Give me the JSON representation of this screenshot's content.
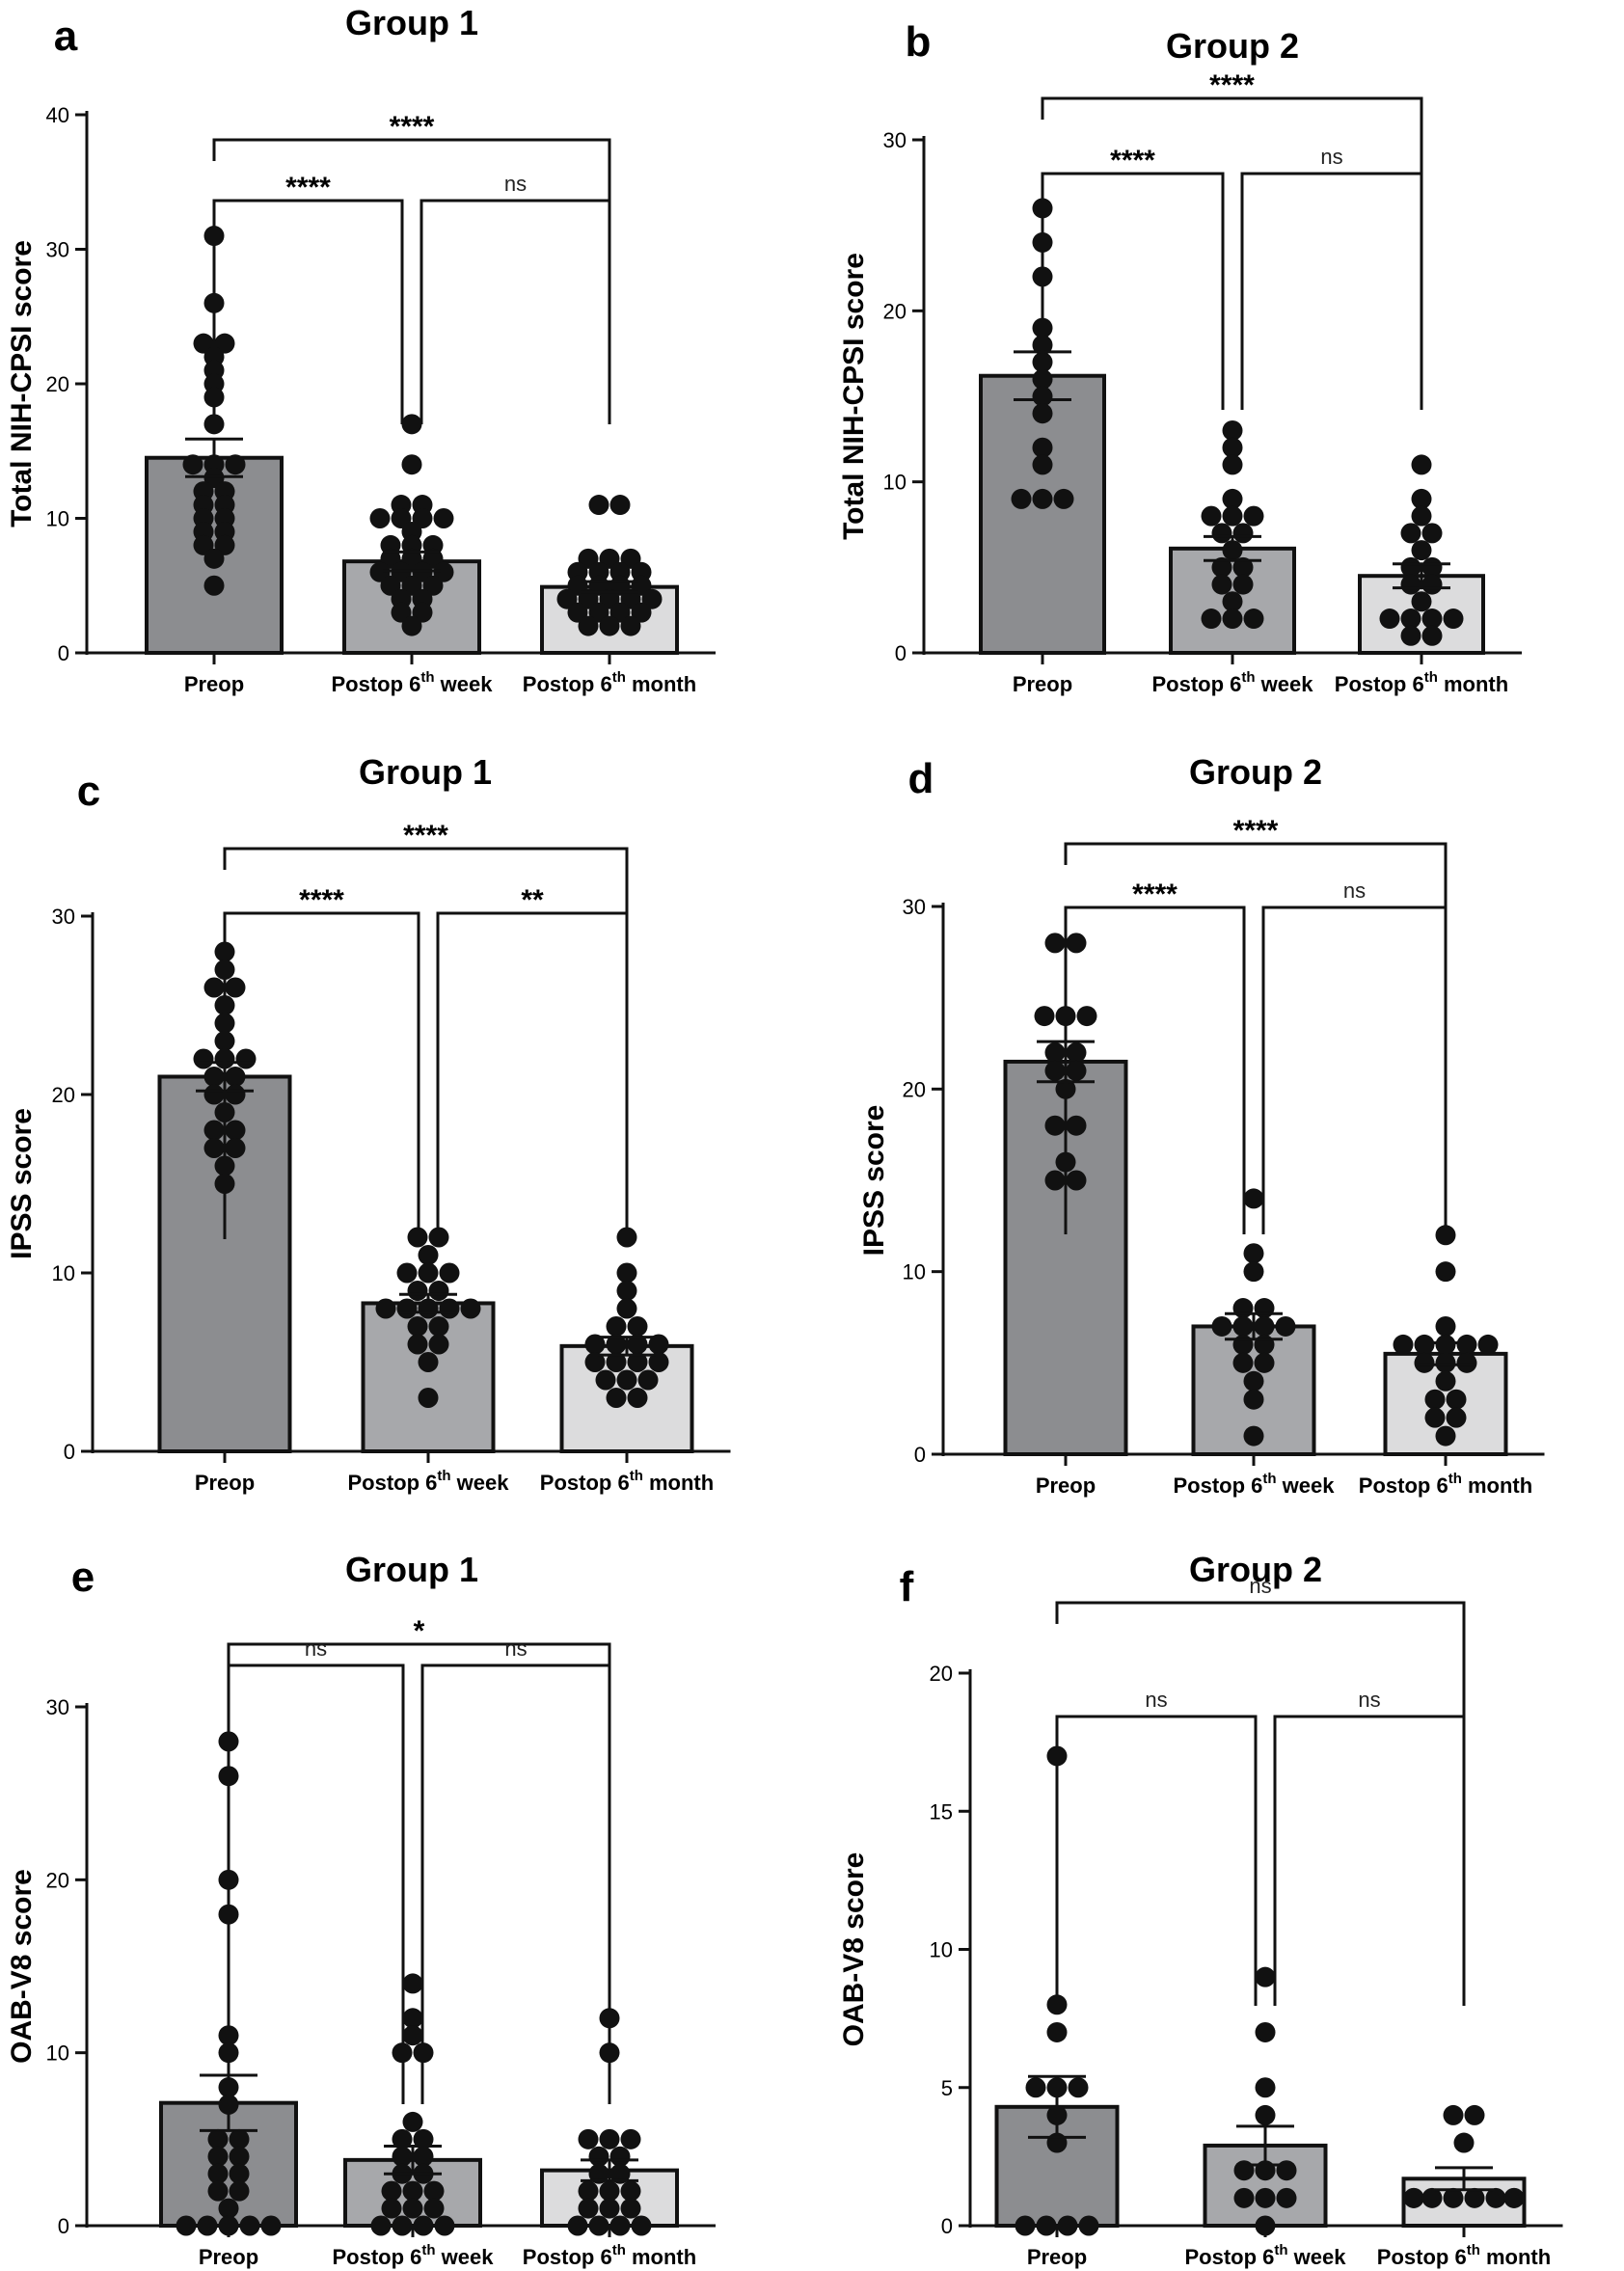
{
  "chart_data": [
    {
      "type": "bar",
      "panel": "a",
      "title": "Group 1",
      "ylabel": "Total NIH-CPSI score",
      "ylim": [
        0,
        40
      ],
      "yticks": [
        0,
        10,
        20,
        30,
        40
      ],
      "categories": [
        {
          "main": "Preop",
          "sup": "",
          "suffix": ""
        },
        {
          "main": "Postop 6",
          "sup": "th",
          "suffix": " week"
        },
        {
          "main": "Postop 6",
          "sup": "th",
          "suffix": " month"
        }
      ],
      "bar_colors": [
        "#8c8d90",
        "#a7a8ab",
        "#dcdcdd"
      ],
      "values": [
        14.5,
        6.8,
        4.9
      ],
      "sem": [
        1.4,
        0.7,
        0.4
      ],
      "points": [
        [
          31,
          26,
          23,
          23,
          22,
          21,
          20,
          19,
          17,
          14,
          14,
          14,
          13,
          12,
          12,
          11,
          11,
          10,
          10,
          9,
          9,
          8,
          8,
          7,
          5
        ],
        [
          17,
          14,
          11,
          11,
          10,
          10,
          10,
          10,
          9,
          8,
          8,
          8,
          7,
          7,
          7,
          6,
          6,
          6,
          6,
          5,
          5,
          5,
          4,
          4,
          3,
          3,
          2
        ],
        [
          11,
          11,
          7,
          7,
          7,
          6,
          6,
          6,
          6,
          5,
          5,
          5,
          5,
          4,
          4,
          4,
          4,
          4,
          3,
          3,
          3,
          3,
          2,
          2,
          2
        ]
      ],
      "comparisons": [
        {
          "from": 0,
          "to": 2,
          "label": "****"
        },
        {
          "from": 0,
          "to": 1,
          "label": "****"
        },
        {
          "from": 1,
          "to": 2,
          "label": "ns"
        }
      ]
    },
    {
      "type": "bar",
      "panel": "b",
      "title": "Group 2",
      "ylabel": "Total NIH-CPSI score",
      "ylim": [
        0,
        30
      ],
      "yticks": [
        0,
        10,
        20,
        30
      ],
      "categories": [
        {
          "main": "Preop",
          "sup": "",
          "suffix": ""
        },
        {
          "main": "Postop 6",
          "sup": "th",
          "suffix": " week"
        },
        {
          "main": "Postop 6",
          "sup": "th",
          "suffix": " month"
        }
      ],
      "bar_colors": [
        "#8c8d90",
        "#a7a8ab",
        "#dcdcdd"
      ],
      "values": [
        16.2,
        6.1,
        4.5
      ],
      "sem": [
        1.4,
        0.7,
        0.7
      ],
      "points": [
        [
          26,
          24,
          22,
          19,
          18,
          17,
          16,
          15,
          14,
          12,
          11,
          9,
          9,
          9
        ],
        [
          13,
          12,
          11,
          9,
          8,
          8,
          8,
          7,
          7,
          6,
          5,
          5,
          4,
          4,
          3,
          2,
          2,
          2
        ],
        [
          11,
          9,
          8,
          7,
          7,
          6,
          5,
          5,
          4,
          4,
          3,
          2,
          2,
          2,
          2,
          1,
          1
        ]
      ],
      "comparisons": [
        {
          "from": 0,
          "to": 2,
          "label": "****"
        },
        {
          "from": 0,
          "to": 1,
          "label": "****"
        },
        {
          "from": 1,
          "to": 2,
          "label": "ns"
        }
      ]
    },
    {
      "type": "bar",
      "panel": "c",
      "title": "Group 1",
      "ylabel": "IPSS score",
      "ylim": [
        0,
        30
      ],
      "yticks": [
        0,
        10,
        20,
        30
      ],
      "categories": [
        {
          "main": "Preop",
          "sup": "",
          "suffix": ""
        },
        {
          "main": "Postop 6",
          "sup": "th",
          "suffix": " week"
        },
        {
          "main": "Postop 6",
          "sup": "th",
          "suffix": " month"
        }
      ],
      "bar_colors": [
        "#8c8d90",
        "#a7a8ab",
        "#dcdcdd"
      ],
      "values": [
        21,
        8.3,
        5.9
      ],
      "sem": [
        0.8,
        0.5,
        0.5
      ],
      "points": [
        [
          28,
          27,
          26,
          26,
          25,
          24,
          23,
          22,
          22,
          22,
          21,
          21,
          20,
          20,
          19,
          18,
          18,
          17,
          17,
          16,
          15
        ],
        [
          12,
          12,
          11,
          10,
          10,
          10,
          9,
          9,
          8,
          8,
          8,
          8,
          8,
          7,
          7,
          6,
          6,
          5,
          3
        ],
        [
          12,
          10,
          9,
          8,
          7,
          7,
          6,
          6,
          6,
          6,
          5,
          5,
          5,
          5,
          4,
          4,
          4,
          3,
          3
        ]
      ],
      "comparisons": [
        {
          "from": 0,
          "to": 2,
          "label": "****"
        },
        {
          "from": 0,
          "to": 1,
          "label": "****"
        },
        {
          "from": 1,
          "to": 2,
          "label": "**"
        }
      ]
    },
    {
      "type": "bar",
      "panel": "d",
      "title": "Group 2",
      "ylabel": "IPSS score",
      "ylim": [
        0,
        30
      ],
      "yticks": [
        0,
        10,
        20,
        30
      ],
      "categories": [
        {
          "main": "Preop",
          "sup": "",
          "suffix": ""
        },
        {
          "main": "Postop 6",
          "sup": "th",
          "suffix": " week"
        },
        {
          "main": "Postop 6",
          "sup": "th",
          "suffix": " month"
        }
      ],
      "bar_colors": [
        "#8c8d90",
        "#a7a8ab",
        "#dcdcdd"
      ],
      "values": [
        21.5,
        7.0,
        5.5
      ],
      "sem": [
        1.1,
        0.7,
        0.6
      ],
      "points": [
        [
          28,
          28,
          24,
          24,
          24,
          22,
          22,
          21,
          21,
          20,
          18,
          18,
          16,
          15,
          15
        ],
        [
          14,
          11,
          10,
          8,
          8,
          7,
          7,
          7,
          7,
          6,
          6,
          5,
          5,
          4,
          3,
          1
        ],
        [
          12,
          10,
          7,
          6,
          6,
          6,
          6,
          6,
          5,
          5,
          5,
          4,
          3,
          3,
          2,
          2,
          1
        ]
      ],
      "comparisons": [
        {
          "from": 0,
          "to": 2,
          "label": "****"
        },
        {
          "from": 0,
          "to": 1,
          "label": "****"
        },
        {
          "from": 1,
          "to": 2,
          "label": "ns"
        }
      ]
    },
    {
      "type": "bar",
      "panel": "e",
      "title": "Group 1",
      "ylabel": "OAB-V8 score",
      "ylim": [
        0,
        30
      ],
      "yticks": [
        0,
        10,
        20,
        30
      ],
      "categories": [
        {
          "main": "Preop",
          "sup": "",
          "suffix": ""
        },
        {
          "main": "Postop 6",
          "sup": "th",
          "suffix": " week"
        },
        {
          "main": "Postop 6",
          "sup": "th",
          "suffix": " month"
        }
      ],
      "bar_colors": [
        "#8c8d90",
        "#a7a8ab",
        "#dcdcdd"
      ],
      "values": [
        7.1,
        3.8,
        3.2
      ],
      "sem": [
        1.6,
        0.8,
        0.6
      ],
      "points": [
        [
          28,
          26,
          20,
          18,
          11,
          10,
          8,
          7,
          5,
          5,
          4,
          4,
          3,
          3,
          2,
          2,
          1,
          0,
          0,
          0,
          0,
          0
        ],
        [
          14,
          12,
          11,
          10,
          10,
          6,
          5,
          5,
          4,
          4,
          3,
          3,
          2,
          2,
          2,
          1,
          1,
          1,
          0,
          0,
          0,
          0
        ],
        [
          12,
          10,
          5,
          5,
          5,
          4,
          4,
          3,
          3,
          2,
          2,
          2,
          1,
          1,
          1,
          0,
          0,
          0,
          0
        ]
      ],
      "comparisons": [
        {
          "from": 0,
          "to": 2,
          "label": "*"
        },
        {
          "from": 0,
          "to": 1,
          "label": "ns"
        },
        {
          "from": 1,
          "to": 2,
          "label": "ns"
        }
      ]
    },
    {
      "type": "bar",
      "panel": "f",
      "title": "Group 2",
      "ylabel": "OAB-V8 score",
      "ylim": [
        0,
        20
      ],
      "yticks": [
        0,
        5,
        10,
        15,
        20
      ],
      "categories": [
        {
          "main": "Preop",
          "sup": "",
          "suffix": ""
        },
        {
          "main": "Postop 6",
          "sup": "th",
          "suffix": " week"
        },
        {
          "main": "Postop 6",
          "sup": "th",
          "suffix": " month"
        }
      ],
      "bar_colors": [
        "#8c8d90",
        "#a7a8ab",
        "#dcdcdd"
      ],
      "values": [
        4.3,
        2.9,
        1.7
      ],
      "sem": [
        1.1,
        0.7,
        0.4
      ],
      "points": [
        [
          17,
          8,
          7,
          5,
          5,
          5,
          4,
          3,
          0,
          0,
          0,
          0
        ],
        [
          9,
          7,
          5,
          4,
          2,
          2,
          2,
          1,
          1,
          1,
          0
        ],
        [
          4,
          4,
          3,
          1,
          1,
          1,
          1,
          1,
          1,
          1,
          1
        ]
      ],
      "comparisons": [
        {
          "from": 0,
          "to": 2,
          "label": "ns"
        },
        {
          "from": 0,
          "to": 1,
          "label": "ns"
        },
        {
          "from": 1,
          "to": 2,
          "label": "ns"
        }
      ]
    }
  ]
}
